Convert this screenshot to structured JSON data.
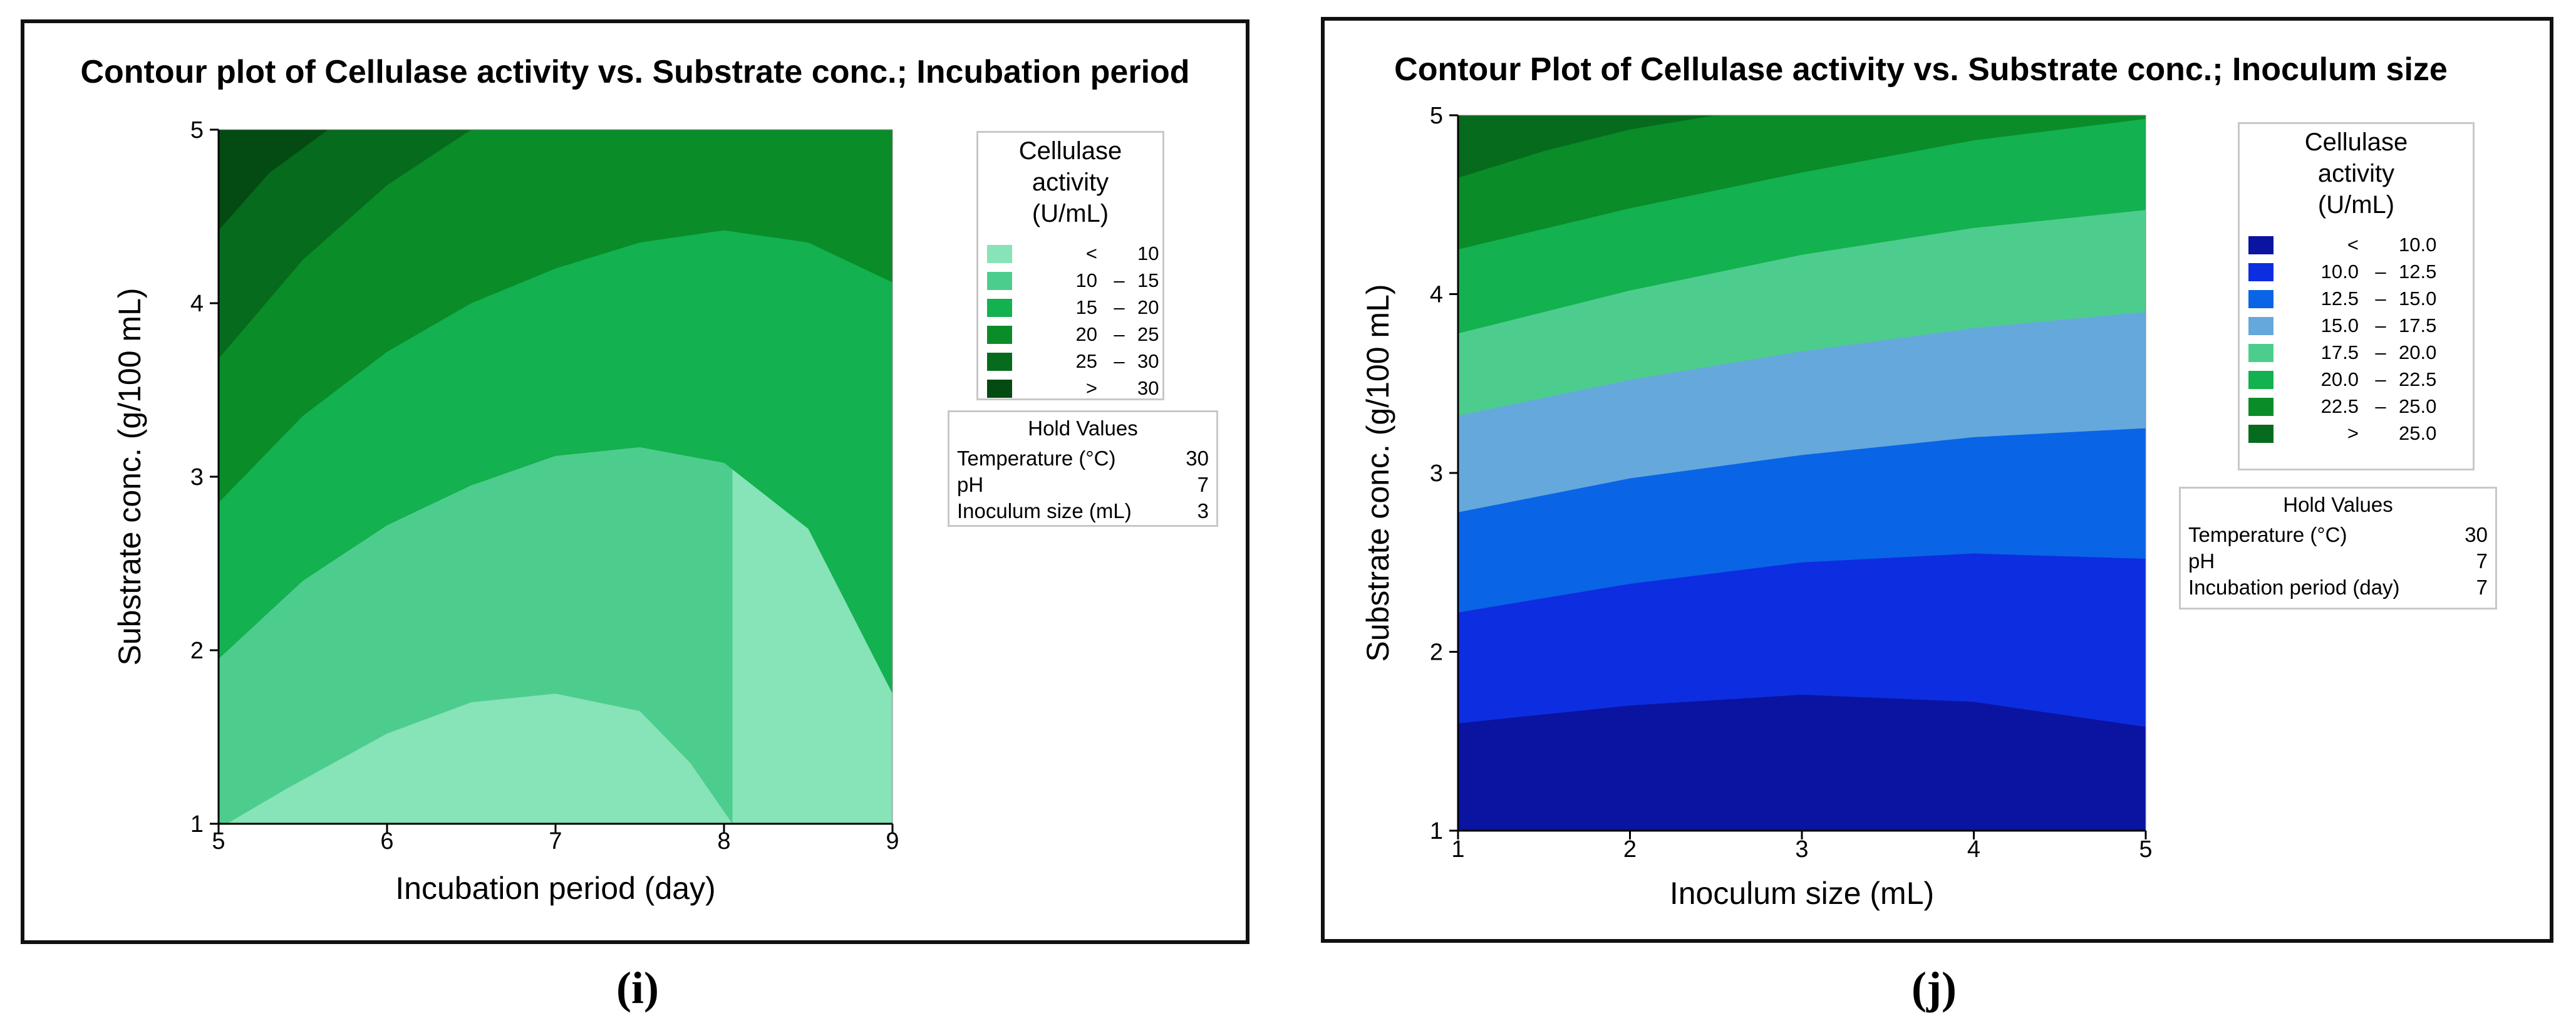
{
  "chart_data": [
    {
      "type": "contour",
      "panel_label": "(i)",
      "title": "Contour plot of Cellulase activity vs. Substrate conc.; Incubation period",
      "xlabel": "Incubation period (day)",
      "ylabel": "Substrate conc. (g/100 mL)",
      "xlim": [
        5,
        9
      ],
      "ylim": [
        1,
        5
      ],
      "xticks": [
        5,
        6,
        7,
        8,
        9
      ],
      "yticks": [
        1,
        2,
        3,
        4,
        5
      ],
      "legend": {
        "title_lines": [
          "Cellulase",
          "activity",
          "(U/mL)"
        ],
        "bands": [
          {
            "low": "<",
            "dash": "",
            "high": "10",
            "color": "#87e3b8"
          },
          {
            "low": "10",
            "dash": "–",
            "high": "15",
            "color": "#4dcd8d"
          },
          {
            "low": "15",
            "dash": "–",
            "high": "20",
            "color": "#13b14f"
          },
          {
            "low": "20",
            "dash": "–",
            "high": "25",
            "color": "#0a8c28"
          },
          {
            "low": "25",
            "dash": "–",
            "high": "30",
            "color": "#066b1c"
          },
          {
            "low": ">",
            "dash": "",
            "high": "30",
            "color": "#044a13"
          }
        ]
      },
      "contour_levels": [
        {
          "level": 10,
          "points": [
            [
              5.05,
              1
            ],
            [
              5.4,
              1.2
            ],
            [
              6,
              1.52
            ],
            [
              6.5,
              1.7
            ],
            [
              7,
              1.75
            ],
            [
              7.5,
              1.65
            ],
            [
              7.8,
              1.35
            ],
            [
              8.05,
              1
            ]
          ]
        },
        {
          "level": 15,
          "points": [
            [
              5,
              1.95
            ],
            [
              5.5,
              2.4
            ],
            [
              6,
              2.72
            ],
            [
              6.5,
              2.95
            ],
            [
              7,
              3.12
            ],
            [
              7.5,
              3.17
            ],
            [
              8,
              3.08
            ],
            [
              8.5,
              2.7
            ],
            [
              9,
              1.75
            ]
          ]
        },
        {
          "level": 20,
          "points": [
            [
              5,
              2.85
            ],
            [
              5.5,
              3.35
            ],
            [
              6,
              3.72
            ],
            [
              6.5,
              4.0
            ],
            [
              7,
              4.2
            ],
            [
              7.5,
              4.35
            ],
            [
              8,
              4.42
            ],
            [
              8.5,
              4.35
            ],
            [
              9,
              4.12
            ]
          ]
        },
        {
          "level": 25,
          "points": [
            [
              5,
              3.68
            ],
            [
              5.5,
              4.25
            ],
            [
              6,
              4.68
            ],
            [
              6.5,
              5.0
            ]
          ]
        },
        {
          "level": 30,
          "points": [
            [
              5,
              4.42
            ],
            [
              5.3,
              4.75
            ],
            [
              5.65,
              5.0
            ]
          ]
        }
      ],
      "hold_values": {
        "title": "Hold Values",
        "rows": [
          {
            "name": "Temperature (°C)",
            "value": "30"
          },
          {
            "name": "pH",
            "value": "7"
          },
          {
            "name": "Inoculum size (mL)",
            "value": "3"
          }
        ]
      }
    },
    {
      "type": "contour",
      "panel_label": "(j)",
      "title": "Contour Plot of Cellulase activity vs. Substrate conc.; Inoculum size",
      "xlabel": "Inoculum size (mL)",
      "ylabel": "Substrate conc. (g/100 mL)",
      "xlim": [
        1,
        5
      ],
      "ylim": [
        1,
        5
      ],
      "xticks": [
        1,
        2,
        3,
        4,
        5
      ],
      "yticks": [
        1,
        2,
        3,
        4,
        5
      ],
      "legend": {
        "title_lines": [
          "Cellulase",
          "activity",
          "(U/mL)"
        ],
        "bands": [
          {
            "low": "<",
            "dash": "",
            "high": "10.0",
            "color": "#0a14a0"
          },
          {
            "low": "10.0",
            "dash": "–",
            "high": "12.5",
            "color": "#0d2de0"
          },
          {
            "low": "12.5",
            "dash": "–",
            "high": "15.0",
            "color": "#0a64e6"
          },
          {
            "low": "15.0",
            "dash": "–",
            "high": "17.5",
            "color": "#65a8dc"
          },
          {
            "low": "17.5",
            "dash": "–",
            "high": "20.0",
            "color": "#4dcd8d"
          },
          {
            "low": "20.0",
            "dash": "–",
            "high": "22.5",
            "color": "#13b14f"
          },
          {
            "low": "22.5",
            "dash": "–",
            "high": "25.0",
            "color": "#0a8c28"
          },
          {
            "low": ">",
            "dash": "",
            "high": "25.0",
            "color": "#066b1c"
          }
        ]
      },
      "contour_levels": [
        {
          "level": 10.0,
          "points": [
            [
              1,
              1.6
            ],
            [
              2,
              1.7
            ],
            [
              3,
              1.76
            ],
            [
              4,
              1.72
            ],
            [
              5,
              1.58
            ]
          ]
        },
        {
          "level": 12.5,
          "points": [
            [
              1,
              2.22
            ],
            [
              2,
              2.38
            ],
            [
              3,
              2.5
            ],
            [
              4,
              2.55
            ],
            [
              5,
              2.52
            ]
          ]
        },
        {
          "level": 15.0,
          "points": [
            [
              1,
              2.78
            ],
            [
              2,
              2.97
            ],
            [
              3,
              3.1
            ],
            [
              4,
              3.2
            ],
            [
              5,
              3.25
            ]
          ]
        },
        {
          "level": 17.5,
          "points": [
            [
              1,
              3.32
            ],
            [
              2,
              3.52
            ],
            [
              3,
              3.68
            ],
            [
              4,
              3.81
            ],
            [
              5,
              3.9
            ]
          ]
        },
        {
          "level": 20.0,
          "points": [
            [
              1,
              3.78
            ],
            [
              2,
              4.02
            ],
            [
              3,
              4.22
            ],
            [
              4,
              4.37
            ],
            [
              5,
              4.47
            ]
          ]
        },
        {
          "level": 22.5,
          "points": [
            [
              1,
              4.25
            ],
            [
              2,
              4.48
            ],
            [
              3,
              4.68
            ],
            [
              4,
              4.86
            ],
            [
              5,
              4.98
            ]
          ]
        },
        {
          "level": 25.0,
          "points": [
            [
              1,
              4.65
            ],
            [
              1.5,
              4.8
            ],
            [
              2,
              4.92
            ],
            [
              2.5,
              5.0
            ]
          ]
        }
      ],
      "hold_values": {
        "title": "Hold Values",
        "rows": [
          {
            "name": "Temperature (°C)",
            "value": "30"
          },
          {
            "name": "pH",
            "value": "7"
          },
          {
            "name": "Incubation period (day)",
            "value": "7"
          }
        ]
      }
    }
  ]
}
